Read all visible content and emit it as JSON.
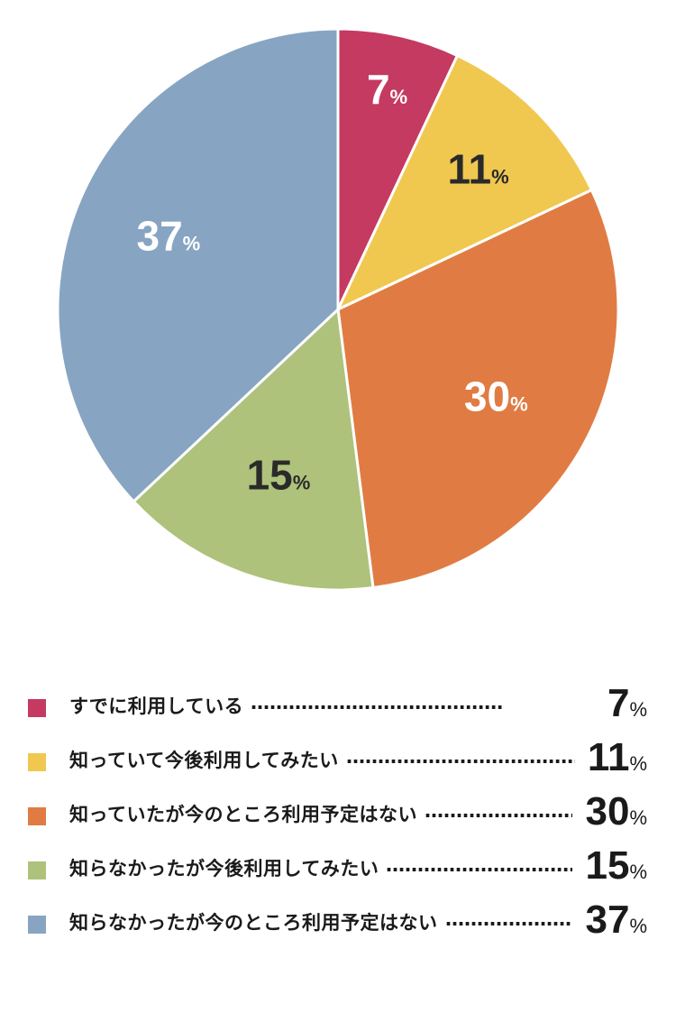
{
  "chart_data": {
    "type": "pie",
    "categories": [
      "すでに利用している",
      "知っていて今後利用してみたい",
      "知っていたが今のところ利用予定はない",
      "知らなかったが今後利用してみたい",
      "知らなかったが今のところ利用予定はない"
    ],
    "values": [
      7,
      11,
      30,
      15,
      37
    ],
    "unit": "%",
    "colors": [
      "#c43a60",
      "#f0c850",
      "#e07c43",
      "#aec27b",
      "#87a5c2"
    ],
    "label_colors": [
      "#ffffff",
      "#2a2a2a",
      "#ffffff",
      "#2a2a2a",
      "#ffffff"
    ],
    "start_angle_deg": 0,
    "direction": "clockwise",
    "legend_position": "bottom"
  },
  "legend": {
    "dots": "‥‥‥‥‥‥‥‥‥‥‥‥‥‥‥‥‥‥‥‥"
  }
}
